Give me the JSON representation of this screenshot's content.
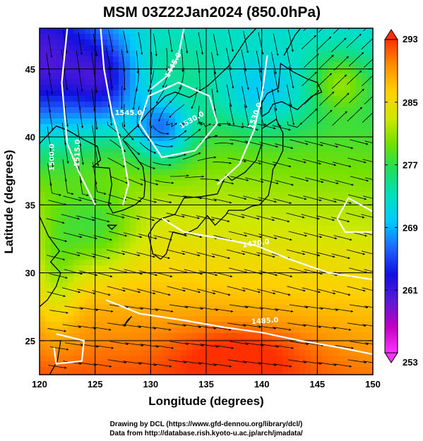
{
  "chart_data": {
    "type": "heatmap",
    "title": "MSM 03Z22Jan2024 (850.0hPa)",
    "xlabel": "Longitude (degrees)",
    "ylabel": "Latitude  (degrees)",
    "xlim": [
      120,
      150
    ],
    "ylim": [
      22.5,
      48
    ],
    "x_ticks": [
      120,
      125,
      130,
      135,
      140,
      145,
      150
    ],
    "y_ticks": [
      25,
      30,
      35,
      40,
      45
    ],
    "grid": true,
    "colorbar": {
      "min": 253,
      "max": 293,
      "ticks": [
        253,
        261,
        269,
        277,
        285,
        293
      ],
      "colors": [
        "#ff33ff",
        "#c000c0",
        "#5a1ad8",
        "#1010e0",
        "#1e64ff",
        "#00c8ff",
        "#00e0c0",
        "#20dc60",
        "#70e000",
        "#d0e800",
        "#ffd000",
        "#ff9000",
        "#ff3000"
      ]
    },
    "contours": [
      {
        "label": "1445.0"
      },
      {
        "label": "1500.0"
      },
      {
        "label": "1515.0"
      },
      {
        "label": "1530.0"
      },
      {
        "label": "1530.0"
      },
      {
        "label": "1470.0"
      },
      {
        "label": "1485.0"
      },
      {
        "label": "1545.0"
      }
    ]
  },
  "credits": {
    "line1": "Drawing by DCL (https://www.gfd-dennou.org/library/dcl/)",
    "line2": "Data from http://database.rish.kyoto-u.ac.jp/arch/jmadata/"
  }
}
